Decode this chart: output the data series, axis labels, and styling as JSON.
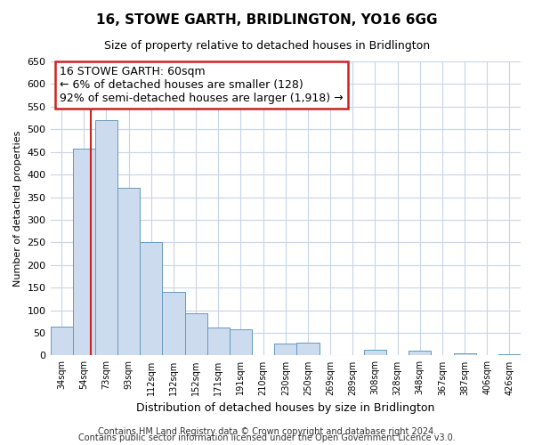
{
  "title": "16, STOWE GARTH, BRIDLINGTON, YO16 6GG",
  "subtitle": "Size of property relative to detached houses in Bridlington",
  "xlabel": "Distribution of detached houses by size in Bridlington",
  "ylabel": "Number of detached properties",
  "bar_labels": [
    "34sqm",
    "54sqm",
    "73sqm",
    "93sqm",
    "112sqm",
    "132sqm",
    "152sqm",
    "171sqm",
    "191sqm",
    "210sqm",
    "230sqm",
    "250sqm",
    "269sqm",
    "289sqm",
    "308sqm",
    "328sqm",
    "348sqm",
    "367sqm",
    "387sqm",
    "406sqm",
    "426sqm"
  ],
  "bar_values": [
    63,
    457,
    521,
    370,
    250,
    141,
    94,
    62,
    57,
    0,
    27,
    28,
    0,
    0,
    12,
    0,
    10,
    0,
    5,
    0,
    3
  ],
  "bar_color": "#ccdcee",
  "bar_edge_color": "#6699bb",
  "vline_color": "#cc2222",
  "ylim": [
    0,
    650
  ],
  "yticks": [
    0,
    50,
    100,
    150,
    200,
    250,
    300,
    350,
    400,
    450,
    500,
    550,
    600,
    650
  ],
  "annotation_line1": "16 STOWE GARTH: 60sqm",
  "annotation_line2": "← 6% of detached houses are smaller (128)",
  "annotation_line3": "92% of semi-detached houses are larger (1,918) →",
  "annotation_box_edge": "#cc2222",
  "footer1": "Contains HM Land Registry data © Crown copyright and database right 2024.",
  "footer2": "Contains public sector information licensed under the Open Government Licence v3.0.",
  "background_color": "#ffffff",
  "grid_color": "#c8d4e8",
  "title_fontsize": 11,
  "subtitle_fontsize": 9,
  "ylabel_fontsize": 8,
  "xlabel_fontsize": 9,
  "tick_fontsize": 8,
  "xtick_fontsize": 7,
  "footer_fontsize": 7,
  "annot_fontsize": 9
}
